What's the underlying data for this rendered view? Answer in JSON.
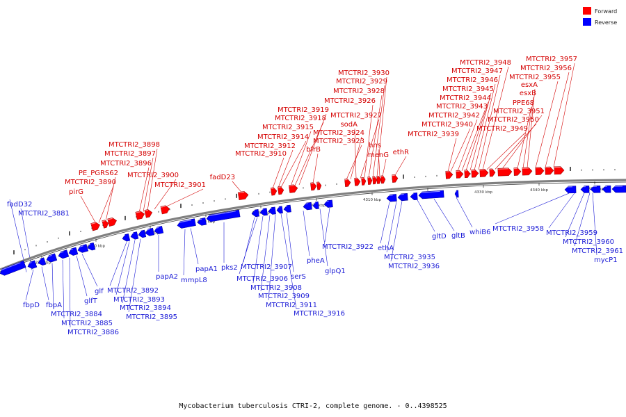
{
  "caption": "Mycobacterium tuberculosis CTRI-2, complete genome. - 0..4398525",
  "colors": {
    "forward": "#ff0000",
    "reverse": "#0000ff",
    "backbone": "#808080"
  },
  "legend": [
    {
      "label": "Forward",
      "color": "#ff0000"
    },
    {
      "label": "Reverse",
      "color": "#0000ff"
    }
  ],
  "ticks": [
    "4250 kbp",
    "4260 kbp",
    "4270 kbp",
    "4280 kbp",
    "4290 kbp",
    "4300 kbp",
    "4310 kbp",
    "4320 kbp",
    "4330 kbp",
    "4340 kbp",
    "4350 kbp"
  ],
  "forward_labels": [
    "pirG",
    "MTCTRI2_3890",
    "PE_PGRS62",
    "MTCTRI2_3896",
    "MTCTRI2_3897",
    "MTCTRI2_3898",
    "MTCTRI2_3900",
    "MTCTRI2_3901",
    "fadD23",
    "MTCTRI2_3910",
    "MTCTRI2_3912",
    "MTCTRI2_3914",
    "MTCTRI2_3915",
    "MTCTRI2_3918",
    "MTCTRI2_3919",
    "bfrB",
    "MTCTRI2_3923",
    "MTCTRI2_3924",
    "sodA",
    "MTCTRI2_3927",
    "MTCTRI2_3926",
    "MTCTRI2_3928",
    "MTCTRI2_3929",
    "MTCTRI2_3930",
    "hns",
    "menG",
    "ethR",
    "MTCTRI2_3939",
    "MTCTRI2_3940",
    "MTCTRI2_3942",
    "MTCTRI2_3943",
    "MTCTRI2_3944",
    "MTCTRI2_3945",
    "MTCTRI2_3946",
    "MTCTRI2_3947",
    "MTCTRI2_3948",
    "MTCTRI2_3949",
    "MTCTRI2_3950",
    "MTCTRI2_3951",
    "PPE68",
    "esxB",
    "esxA",
    "MTCTRI2_3955",
    "MTCTRI2_3956",
    "MTCTRI2_3957"
  ],
  "reverse_labels": [
    "fadD32",
    "MTCTRI2_3881",
    "fbpD",
    "fbpA",
    "MTCTRI2_3884",
    "MTCTRI2_3885",
    "MTCTRI2_3886",
    "glfT",
    "glf",
    "MTCTRI2_3892",
    "MTCTRI2_3893",
    "MTCTRI2_3894",
    "MTCTRI2_3895",
    "papA2",
    "mmpL8",
    "papA1",
    "pks2",
    "MTCTRI2_3907",
    "MTCTRI2_3906",
    "MTCTRI2_3908",
    "MTCTRI2_3909",
    "MTCTRI2_3911",
    "MTCTRI2_3916",
    "serS",
    "pheA",
    "glpQ1",
    "MTCTRI2_3922",
    "ethA",
    "MTCTRI2_3935",
    "MTCTRI2_3936",
    "gltD",
    "gltB",
    "whiB6",
    "MTCTRI2_3958",
    "MTCTRI2_3959",
    "MTCTRI2_3960",
    "MTCTRI2_3961",
    "mycP1"
  ]
}
